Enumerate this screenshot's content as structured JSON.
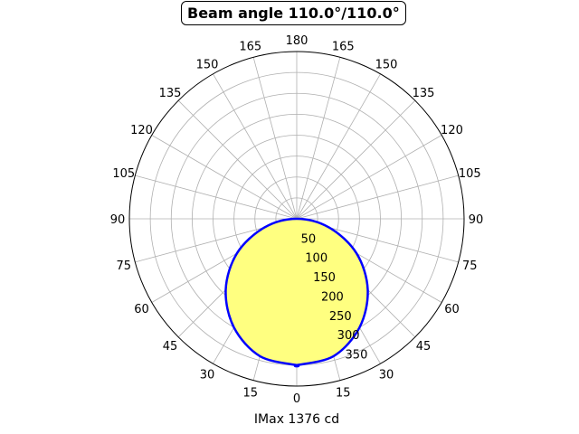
{
  "chart_data": {
    "type": "polar",
    "title": "Beam angle 110.0°/110.0°",
    "xlabel": "IMax 1376 cd",
    "angle_ticks_left": [
      "0",
      "15",
      "30",
      "45",
      "60",
      "75",
      "90",
      "105",
      "120",
      "135",
      "150",
      "165",
      "180"
    ],
    "angle_ticks_right": [
      "15",
      "30",
      "45",
      "60",
      "75",
      "90",
      "105",
      "120",
      "135",
      "150",
      "165"
    ],
    "radial_ticks": [
      50,
      100,
      150,
      200,
      250,
      300,
      350
    ],
    "rmax": 400,
    "grid": true,
    "series": [
      {
        "angles_deg": [
          0,
          15,
          30,
          45,
          60,
          75,
          90
        ],
        "values": [
          350,
          340,
          300,
          240,
          165,
          80,
          0
        ],
        "line_color": "#0000ff",
        "fill_color": "#ffff80"
      }
    ]
  }
}
